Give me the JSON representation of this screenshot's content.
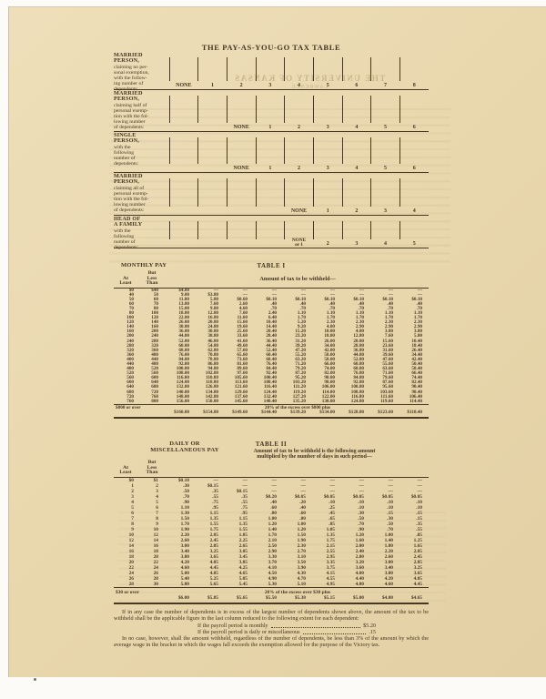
{
  "page_title": "THE PAY-AS-YOU-GO TAX TABLE",
  "ghost_text": {
    "line1": "THE UNIVERSITY OF KANSAS",
    "line2": "LAWRENCE"
  },
  "colors": {
    "paper": "#e9d7ae",
    "ink": "#46341f"
  },
  "dependents_header": {
    "sections": [
      {
        "name_lines": [
          "MARRIED",
          "PERSON,"
        ],
        "desc_lines": [
          "claiming no per-",
          "sonal exemption,",
          "with the follow-",
          "ing number of",
          "dependents:"
        ],
        "cells": [
          "NONE",
          "1",
          "2",
          "3",
          "4",
          "5",
          "6",
          "7",
          "8"
        ]
      },
      {
        "name_lines": [
          "MARRIED",
          "PERSON,"
        ],
        "desc_lines": [
          "claiming half of",
          "personal exemp-",
          "tion with the fol-",
          "lowing number",
          "of dependents:"
        ],
        "cells": [
          "",
          "",
          "NONE",
          "1",
          "2",
          "3",
          "4",
          "5",
          "6"
        ]
      },
      {
        "name_lines": [
          "SINGLE",
          "PERSON,"
        ],
        "desc_lines": [
          "with the",
          "following",
          "number of",
          "dependents:"
        ],
        "cells": [
          "",
          "",
          "NONE",
          "1",
          "2",
          "3",
          "4",
          "5",
          "6"
        ]
      },
      {
        "name_lines": [
          "MARRIED",
          "PERSON,"
        ],
        "desc_lines": [
          "claiming all of",
          "personal exemp-",
          "tion with the fol-",
          "lowing number",
          "of dependents:"
        ],
        "cells": [
          "",
          "",
          "",
          "",
          "NONE",
          "1",
          "2",
          "3",
          "4"
        ]
      },
      {
        "name_lines": [
          "HEAD OF",
          "A FAMILY"
        ],
        "desc_lines": [
          "with the",
          "following",
          "number of",
          "dependents:"
        ],
        "cells": [
          "",
          "",
          "",
          "",
          [
            "NONE",
            "or 1"
          ],
          "2",
          "3",
          "4",
          "5"
        ]
      }
    ]
  },
  "table1": {
    "pay_label": "MONTHLY PAY",
    "title": "TABLE I",
    "col_at_lines": [
      "At",
      "Least"
    ],
    "col_less_lines": [
      "But",
      "Less",
      "Than"
    ],
    "amount_header": "Amount of tax to be withheld—",
    "rows": [
      [
        "$0",
        "$40",
        "$4.00",
        "––",
        "––",
        "––",
        "––",
        "––",
        "––",
        "––",
        "––"
      ],
      [
        "40",
        "50",
        "9.00",
        "$3.80",
        "––",
        "––",
        "––",
        "––",
        "––",
        "––",
        "––"
      ],
      [
        "50",
        "60",
        "11.00",
        "5.80",
        "$0.60",
        "$0.10",
        "$0.10",
        "$0.10",
        "$0.10",
        "$0.10",
        "$0.10"
      ],
      [
        "60",
        "70",
        "13.00",
        "7.60",
        "2.60",
        ".40",
        ".40",
        ".40",
        ".40",
        ".40",
        ".40"
      ],
      [
        "70",
        "80",
        "15.00",
        "9.80",
        "4.60",
        ".70",
        ".70",
        ".70",
        ".70",
        ".70",
        ".70"
      ],
      [
        "80",
        "100",
        "18.00",
        "12.80",
        "7.60",
        "2.40",
        "1.10",
        "1.10",
        "1.10",
        "1.10",
        "1.10"
      ],
      [
        "100",
        "120",
        "22.00",
        "16.80",
        "11.60",
        "6.40",
        "1.70",
        "1.70",
        "1.70",
        "1.70",
        "1.70"
      ],
      [
        "120",
        "140",
        "26.00",
        "20.80",
        "15.60",
        "10.40",
        "5.20",
        "2.30",
        "2.30",
        "2.30",
        "2.30"
      ],
      [
        "140",
        "160",
        "30.00",
        "24.80",
        "19.60",
        "14.40",
        "9.20",
        "4.00",
        "2.90",
        "2.90",
        "2.90"
      ],
      [
        "160",
        "200",
        "36.00",
        "30.80",
        "25.60",
        "20.40",
        "15.20",
        "10.00",
        "4.80",
        "3.80",
        "3.80"
      ],
      [
        "200",
        "240",
        "44.00",
        "38.80",
        "33.60",
        "28.40",
        "23.20",
        "18.00",
        "12.80",
        "7.60",
        "5.00"
      ],
      [
        "240",
        "280",
        "52.00",
        "46.80",
        "41.60",
        "36.40",
        "31.20",
        "26.00",
        "20.80",
        "15.60",
        "10.40"
      ],
      [
        "280",
        "320",
        "60.00",
        "54.80",
        "49.60",
        "44.40",
        "39.20",
        "34.00",
        "28.80",
        "23.60",
        "18.40"
      ],
      [
        "320",
        "360",
        "68.00",
        "62.80",
        "57.60",
        "52.40",
        "47.20",
        "42.00",
        "36.80",
        "31.60",
        "26.40"
      ],
      [
        "360",
        "400",
        "76.00",
        "70.80",
        "65.60",
        "60.40",
        "55.20",
        "50.00",
        "44.80",
        "39.60",
        "34.40"
      ],
      [
        "400",
        "440",
        "84.00",
        "78.80",
        "73.60",
        "68.40",
        "63.20",
        "58.00",
        "52.80",
        "47.60",
        "42.40"
      ],
      [
        "440",
        "480",
        "92.00",
        "86.80",
        "81.60",
        "76.40",
        "71.20",
        "66.00",
        "60.80",
        "55.60",
        "50.40"
      ],
      [
        "480",
        "520",
        "100.00",
        "94.80",
        "89.60",
        "84.40",
        "79.20",
        "74.00",
        "68.80",
        "63.60",
        "58.40"
      ],
      [
        "520",
        "560",
        "108.00",
        "102.80",
        "97.60",
        "92.40",
        "87.20",
        "82.00",
        "76.80",
        "71.60",
        "66.40"
      ],
      [
        "560",
        "600",
        "116.00",
        "110.80",
        "105.60",
        "100.40",
        "95.20",
        "90.00",
        "84.80",
        "79.60",
        "74.40"
      ],
      [
        "600",
        "640",
        "124.00",
        "118.80",
        "113.60",
        "108.40",
        "103.20",
        "98.00",
        "92.80",
        "87.60",
        "82.40"
      ],
      [
        "640",
        "680",
        "132.00",
        "126.80",
        "121.60",
        "116.40",
        "111.20",
        "106.00",
        "100.80",
        "95.60",
        "90.40"
      ],
      [
        "680",
        "720",
        "140.00",
        "134.80",
        "129.60",
        "124.40",
        "119.20",
        "114.00",
        "108.80",
        "103.60",
        "98.40"
      ],
      [
        "720",
        "760",
        "148.00",
        "142.80",
        "137.60",
        "132.40",
        "127.20",
        "122.00",
        "116.80",
        "111.60",
        "106.40"
      ],
      [
        "760",
        "800",
        "156.00",
        "150.80",
        "145.60",
        "140.40",
        "135.20",
        "130.00",
        "124.80",
        "119.60",
        "114.40"
      ]
    ],
    "overflow_label": "$800 or over",
    "overflow_note": "20% of the excess over $800 plus",
    "overflow_values": [
      "$160.00",
      "$154.80",
      "$149.60",
      "$144.40",
      "$139.20",
      "$134.00",
      "$128.80",
      "$123.60",
      "$118.40"
    ]
  },
  "table2": {
    "pay_label_lines": [
      "DAILY OR",
      "MISCELLANEOUS PAY"
    ],
    "title": "TABLE II",
    "col_at_lines": [
      "At",
      "Least"
    ],
    "col_less_lines": [
      "But",
      "Less",
      "Than"
    ],
    "amount_header_lines": [
      "Amount of tax to be withheld is the following amount",
      "multiplied by the number of days in such period—"
    ],
    "rows": [
      [
        "$0",
        "$1",
        "$0.10",
        "––",
        "––",
        "––",
        "––",
        "––",
        "––",
        "––",
        "––"
      ],
      [
        "1",
        "2",
        ".30",
        "$0.15",
        "––",
        "––",
        "––",
        "––",
        "––",
        "––",
        "––"
      ],
      [
        "2",
        "3",
        ".50",
        ".35",
        "$0.15",
        "––",
        "––",
        "––",
        "––",
        "––",
        "––"
      ],
      [
        "3",
        "4",
        ".70",
        ".55",
        ".35",
        "$0.20",
        "$0.05",
        "$0.05",
        "$0.05",
        "$0.05",
        "$0.05"
      ],
      [
        "4",
        "5",
        ".90",
        ".75",
        ".55",
        ".40",
        ".20",
        ".10",
        ".10",
        ".10",
        ".10"
      ],
      [
        "5",
        "6",
        "1.10",
        ".95",
        ".75",
        ".60",
        ".40",
        ".25",
        ".10",
        ".10",
        ".10"
      ],
      [
        "6",
        "7",
        "1.30",
        "1.15",
        ".95",
        ".80",
        ".60",
        ".45",
        ".30",
        ".15",
        ".15"
      ],
      [
        "7",
        "8",
        "1.50",
        "1.35",
        "1.15",
        "1.00",
        ".80",
        ".65",
        ".50",
        ".30",
        ".15"
      ],
      [
        "8",
        "9",
        "1.70",
        "1.55",
        "1.35",
        "1.20",
        "1.00",
        ".85",
        ".70",
        ".50",
        ".35"
      ],
      [
        "9",
        "10",
        "1.90",
        "1.75",
        "1.55",
        "1.40",
        "1.20",
        "1.05",
        ".90",
        ".70",
        ".55"
      ],
      [
        "10",
        "12",
        "2.20",
        "2.05",
        "1.85",
        "1.70",
        "1.50",
        "1.35",
        "1.20",
        "1.00",
        ".85"
      ],
      [
        "12",
        "14",
        "2.60",
        "2.45",
        "2.25",
        "2.10",
        "1.90",
        "1.75",
        "1.60",
        "1.40",
        "1.25"
      ],
      [
        "14",
        "16",
        "3.00",
        "2.85",
        "2.65",
        "2.50",
        "2.30",
        "2.15",
        "2.00",
        "1.80",
        "1.65"
      ],
      [
        "16",
        "18",
        "3.40",
        "3.25",
        "3.05",
        "2.90",
        "2.70",
        "2.55",
        "2.40",
        "2.20",
        "2.05"
      ],
      [
        "18",
        "20",
        "3.80",
        "3.65",
        "3.45",
        "3.30",
        "3.10",
        "2.95",
        "2.80",
        "2.60",
        "2.45"
      ],
      [
        "20",
        "22",
        "4.20",
        "4.05",
        "3.85",
        "3.70",
        "3.50",
        "3.35",
        "3.20",
        "3.00",
        "2.85"
      ],
      [
        "22",
        "24",
        "4.60",
        "4.45",
        "4.25",
        "4.10",
        "3.90",
        "3.75",
        "3.60",
        "3.40",
        "3.25"
      ],
      [
        "24",
        "26",
        "5.00",
        "4.85",
        "4.65",
        "4.50",
        "4.30",
        "4.15",
        "4.00",
        "3.80",
        "3.65"
      ],
      [
        "26",
        "28",
        "5.40",
        "5.25",
        "5.05",
        "4.90",
        "4.70",
        "4.55",
        "4.40",
        "4.20",
        "4.05"
      ],
      [
        "28",
        "30",
        "5.80",
        "5.65",
        "5.45",
        "5.30",
        "5.10",
        "4.95",
        "4.80",
        "4.60",
        "4.45"
      ]
    ],
    "overflow_label": "$30 or over",
    "overflow_note": "20% of the excess over $30 plus",
    "overflow_values": [
      "$6.00",
      "$5.85",
      "$5.65",
      "$5.50",
      "$5.30",
      "$5.15",
      "$5.00",
      "$4.80",
      "$4.65"
    ]
  },
  "footnotes": {
    "para1": "If in any case the number of dependents is in excess of the largest number of dependents shown above, the amount of the tax to be withheld shall be the applicable figure in the last column reduced to the following extent for each dependent:",
    "leader_lines": [
      {
        "label": "If the payroll period is monthly",
        "value": "$5.20"
      },
      {
        "label": "If the payroll period is daily or miscellaneous",
        "value": ".15"
      }
    ],
    "para2": "In no case, however, shall the amount withheld, regardless of the number of dependents, be less than 3% of the amount by which the average wage in the bracket in which the wages fall exceeds the exemption allowed for the purpose of the Victory tax."
  }
}
